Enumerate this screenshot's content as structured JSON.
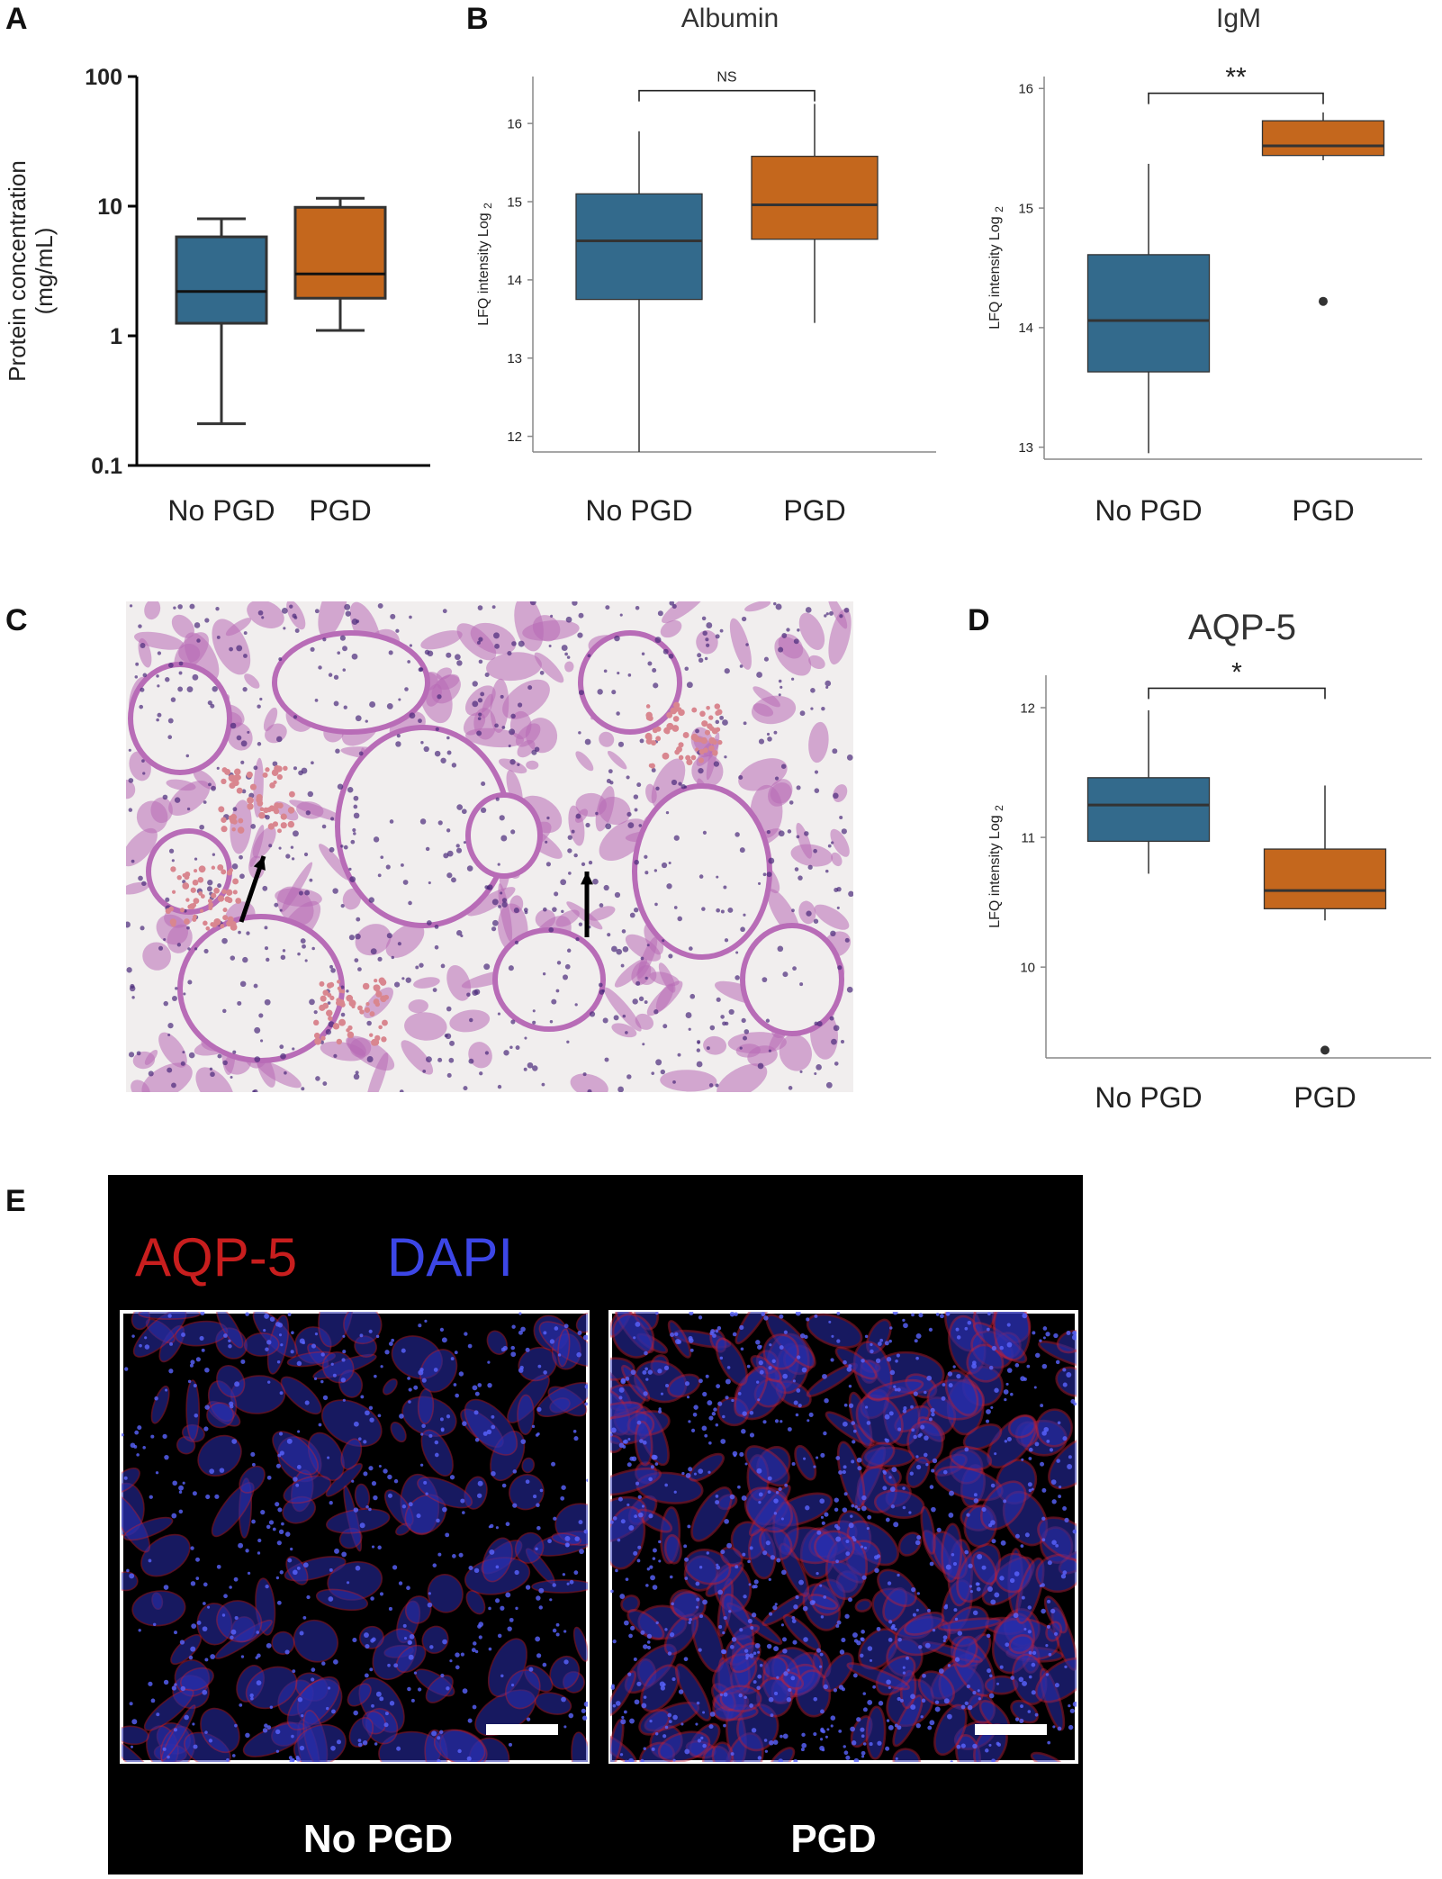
{
  "panels": {
    "A": "A",
    "B": "B",
    "C": "C",
    "D": "D",
    "E": "E"
  },
  "colors": {
    "no_pgd": "#336a8c",
    "pgd": "#c4671d",
    "aqp5_label": "#c81e1e",
    "dapi_label": "#3c46e6",
    "he_background": "#f1eeee",
    "he_tissue": "#b86cb7",
    "he_nuclei": "#4a2a7a",
    "he_rbc": "#d9868f"
  },
  "chart_data": [
    {
      "id": "A",
      "type": "box",
      "title": "",
      "ylabel": "Protein concentration (mg/mL)",
      "ylabel_lines": [
        "Protein concentration",
        "(mg/mL)"
      ],
      "yscale": "log",
      "ylim": [
        0.1,
        100
      ],
      "yticks": [
        0.1,
        1,
        10,
        100
      ],
      "ytick_labels": [
        "0.1",
        "1",
        "10",
        "100"
      ],
      "categories": [
        "No PGD",
        "PGD"
      ],
      "boxes": [
        {
          "name": "No PGD",
          "whisker_low": 0.21,
          "q1": 1.25,
          "median": 2.2,
          "q3": 5.8,
          "whisker_high": 8.0,
          "outliers": []
        },
        {
          "name": "PGD",
          "whisker_low": 1.1,
          "q1": 1.95,
          "median": 3.0,
          "q3": 9.8,
          "whisker_high": 11.5,
          "outliers": []
        }
      ],
      "significance": ""
    },
    {
      "id": "B-albumin",
      "type": "box",
      "title": "Albumin",
      "ylabel": "LFQ intensity Log 2",
      "ylabel_main": "LFQ intensity Log",
      "ylabel_sub": "2",
      "yscale": "linear",
      "ylim": [
        11.8,
        16.6
      ],
      "yticks": [
        12,
        13,
        14,
        15,
        16
      ],
      "ytick_labels": [
        "12",
        "13",
        "14",
        "15",
        "16"
      ],
      "categories": [
        "No PGD",
        "PGD"
      ],
      "boxes": [
        {
          "name": "No PGD",
          "whisker_low": 11.8,
          "q1": 13.75,
          "median": 14.5,
          "q3": 15.1,
          "whisker_high": 15.9,
          "outliers": []
        },
        {
          "name": "PGD",
          "whisker_low": 13.45,
          "q1": 14.52,
          "median": 14.96,
          "q3": 15.58,
          "whisker_high": 16.25,
          "outliers": []
        }
      ],
      "significance": "NS",
      "bracket_y": 16.42
    },
    {
      "id": "B-igm",
      "type": "box",
      "title": "IgM",
      "ylabel": "LFQ intensity Log 2",
      "ylabel_main": "LFQ intensity Log",
      "ylabel_sub": "2",
      "yscale": "linear",
      "ylim": [
        12.9,
        16.1
      ],
      "yticks": [
        13,
        14,
        15,
        16
      ],
      "ytick_labels": [
        "13",
        "14",
        "15",
        "16"
      ],
      "categories": [
        "No PGD",
        "PGD"
      ],
      "boxes": [
        {
          "name": "No PGD",
          "whisker_low": 12.95,
          "q1": 13.63,
          "median": 14.06,
          "q3": 14.61,
          "whisker_high": 15.37,
          "outliers": []
        },
        {
          "name": "PGD",
          "whisker_low": 15.4,
          "q1": 15.44,
          "median": 15.52,
          "q3": 15.73,
          "whisker_high": 15.8,
          "outliers": [
            14.22
          ]
        }
      ],
      "significance": "**",
      "bracket_y": 15.96
    },
    {
      "id": "D",
      "type": "box",
      "title": "AQP-5",
      "ylabel": "LFQ intensity Log 2",
      "ylabel_main": "LFQ intensity Log",
      "ylabel_sub": "2",
      "yscale": "linear",
      "ylim": [
        9.3,
        12.25
      ],
      "yticks": [
        10,
        11,
        12
      ],
      "ytick_labels": [
        "10",
        "11",
        "12"
      ],
      "categories": [
        "No PGD",
        "PGD"
      ],
      "boxes": [
        {
          "name": "No PGD",
          "whisker_low": 10.72,
          "q1": 10.97,
          "median": 11.25,
          "q3": 11.46,
          "whisker_high": 11.98,
          "outliers": []
        },
        {
          "name": "PGD",
          "whisker_low": 10.36,
          "q1": 10.45,
          "median": 10.59,
          "q3": 10.91,
          "whisker_high": 11.4,
          "outliers": [
            9.36
          ]
        }
      ],
      "significance": "*",
      "bracket_y": 12.15
    }
  ],
  "panel_e": {
    "stain_label_1": "AQP-5",
    "stain_label_2": "DAPI",
    "image_labels": [
      "No PGD",
      "PGD"
    ]
  }
}
